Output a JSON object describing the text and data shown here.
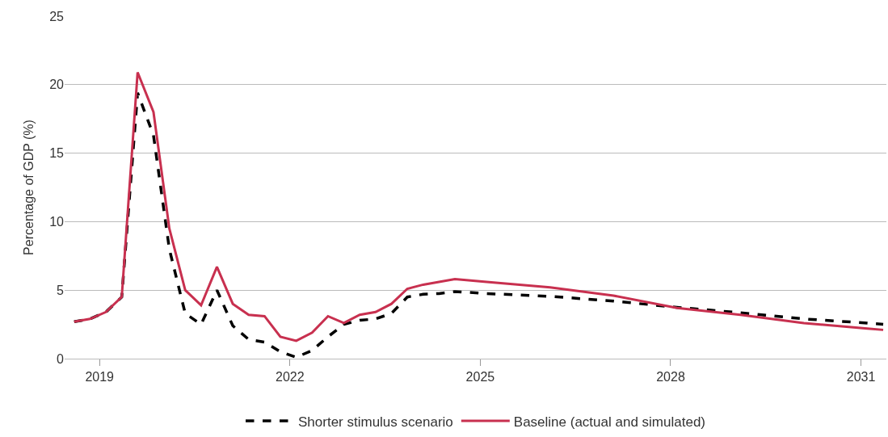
{
  "chart_data": {
    "type": "line",
    "ylabel": "Percentage of GDP (%)",
    "x": [
      2018.6,
      2018.85,
      2019.1,
      2019.35,
      2019.6,
      2019.85,
      2020.1,
      2020.35,
      2020.6,
      2020.85,
      2021.1,
      2021.35,
      2021.6,
      2021.85,
      2022.1,
      2022.35,
      2022.6,
      2022.85,
      2023.1,
      2023.35,
      2023.6,
      2023.85,
      2024.1,
      2024.35,
      2024.6,
      2025.1,
      2026.1,
      2027.1,
      2028.1,
      2029.1,
      2030.1,
      2031.1,
      2031.35
    ],
    "series": [
      {
        "name": "Shorter stimulus scenario",
        "color": "#000000",
        "line_style": "dashed",
        "values": [
          2.7,
          2.9,
          3.4,
          4.5,
          19.4,
          16.3,
          8.0,
          3.3,
          2.5,
          5.0,
          2.4,
          1.4,
          1.2,
          0.5,
          0.1,
          0.6,
          1.6,
          2.5,
          2.8,
          2.9,
          3.3,
          4.5,
          4.7,
          4.75,
          4.9,
          4.75,
          4.55,
          4.2,
          3.75,
          3.35,
          2.9,
          2.6,
          2.5
        ]
      },
      {
        "name": "Baseline (actual and simulated)",
        "color": "#c8304f",
        "line_style": "solid",
        "values": [
          2.7,
          2.9,
          3.4,
          4.5,
          20.9,
          18.0,
          9.5,
          5.0,
          3.9,
          6.7,
          4.0,
          3.2,
          3.1,
          1.6,
          1.3,
          1.9,
          3.1,
          2.6,
          3.2,
          3.4,
          4.0,
          5.1,
          5.4,
          5.6,
          5.8,
          5.6,
          5.2,
          4.6,
          3.7,
          3.2,
          2.6,
          2.2,
          2.1
        ]
      }
    ],
    "xlim": [
      2018.45,
      2031.4
    ],
    "xticks": [
      2019,
      2022,
      2025,
      2028,
      2031
    ],
    "ylim": [
      0,
      25
    ],
    "yticks": [
      0,
      5,
      10,
      15,
      20,
      25
    ],
    "grid": "y",
    "legend": "bottom",
    "marker": "none"
  }
}
